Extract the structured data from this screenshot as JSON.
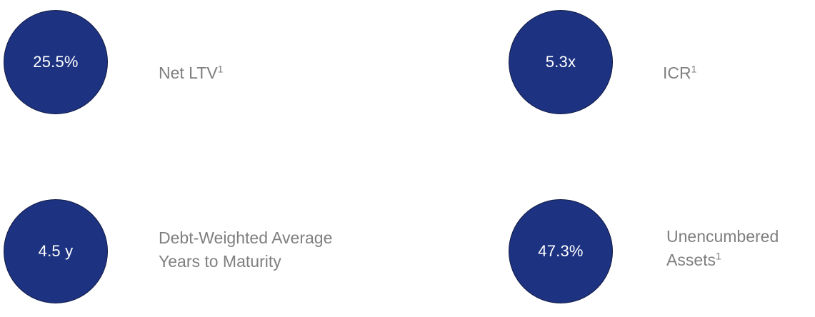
{
  "metrics": [
    {
      "value": "25.5%",
      "label_line1": "Net LTV",
      "label_line2": "",
      "footnote": "1"
    },
    {
      "value": "5.3x",
      "label_line1": "ICR",
      "label_line2": "",
      "footnote": "1"
    },
    {
      "value": "4.5 y",
      "label_line1": "Debt-Weighted Average",
      "label_line2": "Years to Maturity",
      "footnote": ""
    },
    {
      "value": "47.3%",
      "label_line1": "Unencumbered",
      "label_line2": "Assets",
      "footnote": "1"
    }
  ],
  "colors": {
    "circle_fill": "#1d3381",
    "circle_text": "#ffffff",
    "label_text": "#7f7f7f"
  }
}
